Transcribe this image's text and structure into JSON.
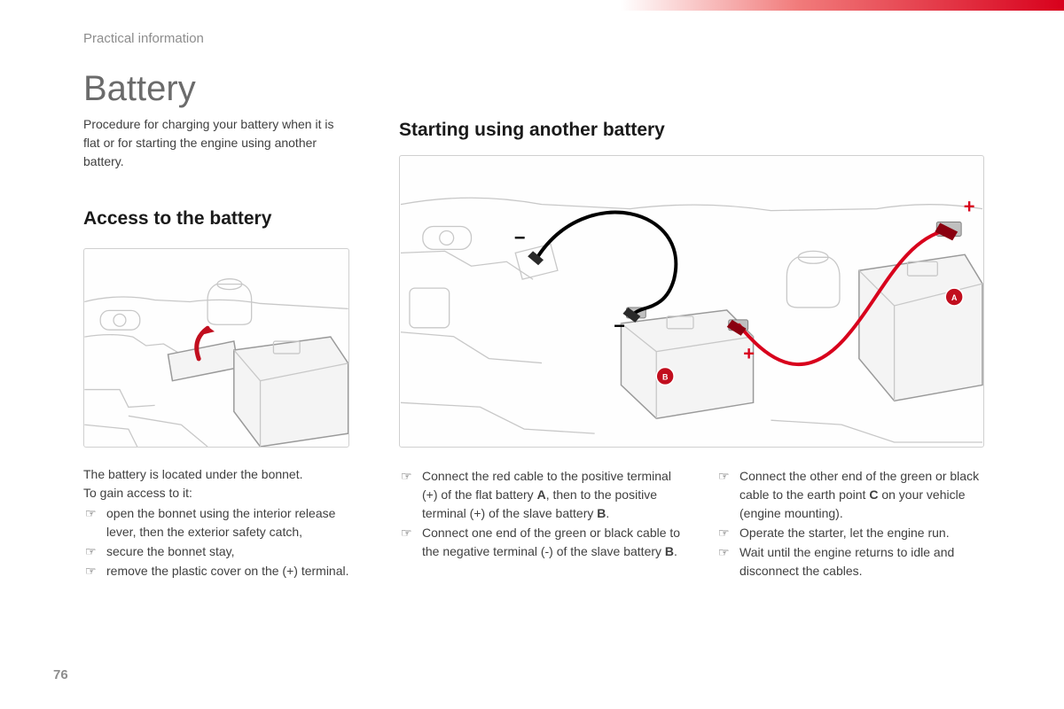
{
  "colors": {
    "accent_red": "#d8001c",
    "badge_red": "#c10e1e",
    "text_body": "#404040",
    "text_muted": "#8d8d8d",
    "text_heading": "#1a1a1a",
    "engine_line": "#c8c8c8",
    "battery_stroke": "#9a9a9a",
    "battery_fill": "#f4f4f4"
  },
  "header": {
    "section": "Practical information"
  },
  "title": "Battery",
  "intro": "Procedure for charging your battery when it is flat or for starting the engine using another battery.",
  "left": {
    "heading": "Access to the battery",
    "lead1": "The battery is located under the bonnet.",
    "lead2": "To gain access to it:",
    "items": [
      "open the bonnet using the interior release lever, then the exterior safety catch,",
      "secure the bonnet stay,",
      "remove the plastic cover on the (+) terminal."
    ]
  },
  "right": {
    "heading": "Starting using another battery",
    "col1": [
      "Connect the red cable to the positive terminal (+) of the flat battery A, then to the positive terminal (+) of the slave battery B.",
      "Connect one end of the green or black cable to the negative terminal (-) of the slave battery B."
    ],
    "col2": [
      "Connect the other end of the green or black cable to the earth point C on your vehicle (engine mounting).",
      "Operate the starter, let the engine run.",
      "Wait until the engine returns to idle and disconnect the cables."
    ]
  },
  "diagram": {
    "labels": {
      "batteryA": "A",
      "batteryB": "B",
      "plus": "+",
      "minus": "−"
    },
    "arrow_color": "#c10e1e"
  },
  "page": "76"
}
